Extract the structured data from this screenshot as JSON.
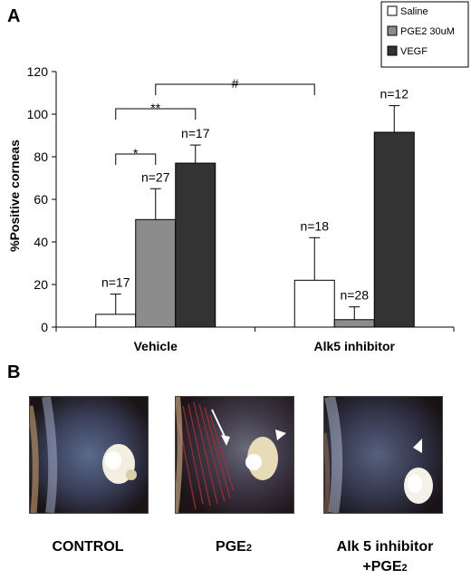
{
  "panel_a_label": "A",
  "panel_b_label": "B",
  "chart_data": {
    "type": "bar",
    "categories": [
      "Vehicle",
      "Alk5 inhibitor"
    ],
    "series": [
      {
        "name": "Saline",
        "values": [
          6,
          22
        ],
        "errors": [
          9.5,
          20
        ],
        "n_labels": [
          "n=17",
          "n=18"
        ],
        "color": "#ffffff"
      },
      {
        "name": "PGE2 30uM",
        "values": [
          50.5,
          3.5
        ],
        "errors": [
          14.5,
          6
        ],
        "n_labels": [
          "n=27",
          "n=28"
        ],
        "color": "#8c8c8c"
      },
      {
        "name": "VEGF",
        "values": [
          77,
          91.5
        ],
        "errors": [
          8.5,
          12.5
        ],
        "n_labels": [
          "n=17",
          "n=12"
        ],
        "color": "#333333"
      }
    ],
    "ylabel": "%Positive corneas",
    "ylim": [
      0,
      120
    ],
    "yticks": [
      0,
      20,
      40,
      60,
      80,
      100,
      120
    ],
    "grid": false,
    "legend_position": "top-right",
    "significance": [
      {
        "label": "*",
        "from": "Vehicle / Saline",
        "to": "Vehicle / PGE2 30uM"
      },
      {
        "label": "**",
        "from": "Vehicle / Saline",
        "to": "Vehicle / VEGF"
      },
      {
        "label": "#",
        "from": "Vehicle / PGE2 30uM",
        "to": "Alk5 inhibitor / Saline"
      }
    ]
  },
  "photos": {
    "captions": [
      {
        "line1": "CONTROL",
        "line2": ""
      },
      {
        "line1": "PGE",
        "sub": "2",
        "line2": ""
      },
      {
        "line1": "Alk 5 inhibitor",
        "line2": "+PGE",
        "sub": "2"
      }
    ]
  }
}
